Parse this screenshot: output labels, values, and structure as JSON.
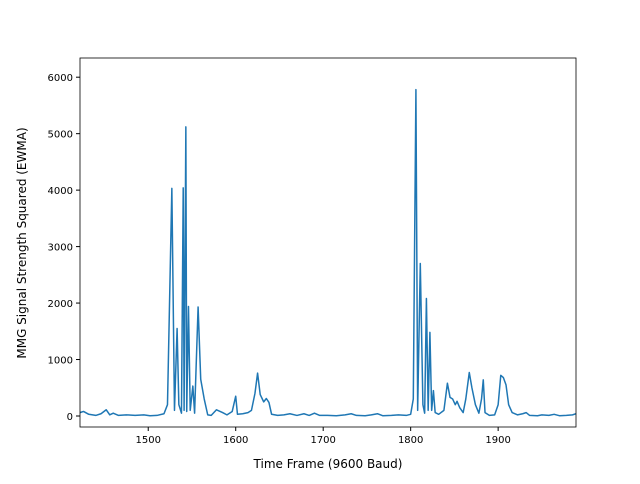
{
  "chart_data": {
    "type": "line",
    "xlabel": "Time Frame (9600 Baud)",
    "ylabel": "MMG Signal Strength Squared (EWMA)",
    "xlim": [
      1422,
      1989
    ],
    "ylim": [
      -195,
      6340
    ],
    "xticks": [
      1500,
      1600,
      1700,
      1800,
      1900
    ],
    "yticks": [
      0,
      1000,
      2000,
      3000,
      4000,
      5000,
      6000
    ],
    "grid": false,
    "series": [
      {
        "color": "#1f77b4",
        "x": [
          1422,
          1426,
          1432,
          1440,
          1446,
          1452,
          1456,
          1460,
          1466,
          1475,
          1485,
          1495,
          1502,
          1510,
          1518,
          1522,
          1527,
          1530,
          1533,
          1535,
          1538,
          1540,
          1541,
          1543,
          1544,
          1546,
          1548,
          1551,
          1553,
          1557,
          1560,
          1564,
          1568,
          1572,
          1578,
          1585,
          1590,
          1596,
          1600,
          1602,
          1608,
          1614,
          1618,
          1622,
          1625,
          1628,
          1632,
          1635,
          1638,
          1641,
          1648,
          1655,
          1662,
          1670,
          1678,
          1684,
          1690,
          1696,
          1705,
          1715,
          1725,
          1732,
          1738,
          1748,
          1755,
          1762,
          1768,
          1778,
          1786,
          1795,
          1800,
          1803,
          1806,
          1808,
          1811,
          1814,
          1816,
          1818,
          1820,
          1822,
          1824,
          1826,
          1828,
          1832,
          1838,
          1842,
          1845,
          1848,
          1851,
          1853,
          1856,
          1860,
          1863,
          1867,
          1870,
          1874,
          1878,
          1881,
          1883,
          1885,
          1890,
          1896,
          1900,
          1903,
          1906,
          1909,
          1912,
          1916,
          1922,
          1928,
          1932,
          1936,
          1945,
          1950,
          1958,
          1964,
          1970,
          1978,
          1985,
          1989
        ],
        "values": [
          60,
          80,
          30,
          10,
          40,
          110,
          20,
          50,
          10,
          20,
          10,
          20,
          5,
          10,
          40,
          200,
          4030,
          100,
          1550,
          200,
          50,
          4040,
          100,
          5120,
          80,
          1940,
          100,
          530,
          50,
          1930,
          650,
          300,
          20,
          10,
          110,
          60,
          20,
          80,
          350,
          30,
          40,
          60,
          100,
          400,
          760,
          380,
          250,
          310,
          240,
          30,
          10,
          20,
          40,
          10,
          40,
          10,
          50,
          10,
          10,
          5,
          20,
          40,
          10,
          5,
          20,
          40,
          5,
          10,
          20,
          10,
          30,
          300,
          5780,
          100,
          2700,
          200,
          50,
          2080,
          100,
          1480,
          100,
          450,
          60,
          30,
          100,
          580,
          330,
          300,
          200,
          260,
          150,
          60,
          300,
          770,
          500,
          200,
          50,
          300,
          640,
          60,
          10,
          20,
          200,
          720,
          680,
          550,
          200,
          60,
          20,
          40,
          60,
          10,
          5,
          20,
          10,
          30,
          5,
          10,
          20,
          40
        ]
      }
    ]
  }
}
